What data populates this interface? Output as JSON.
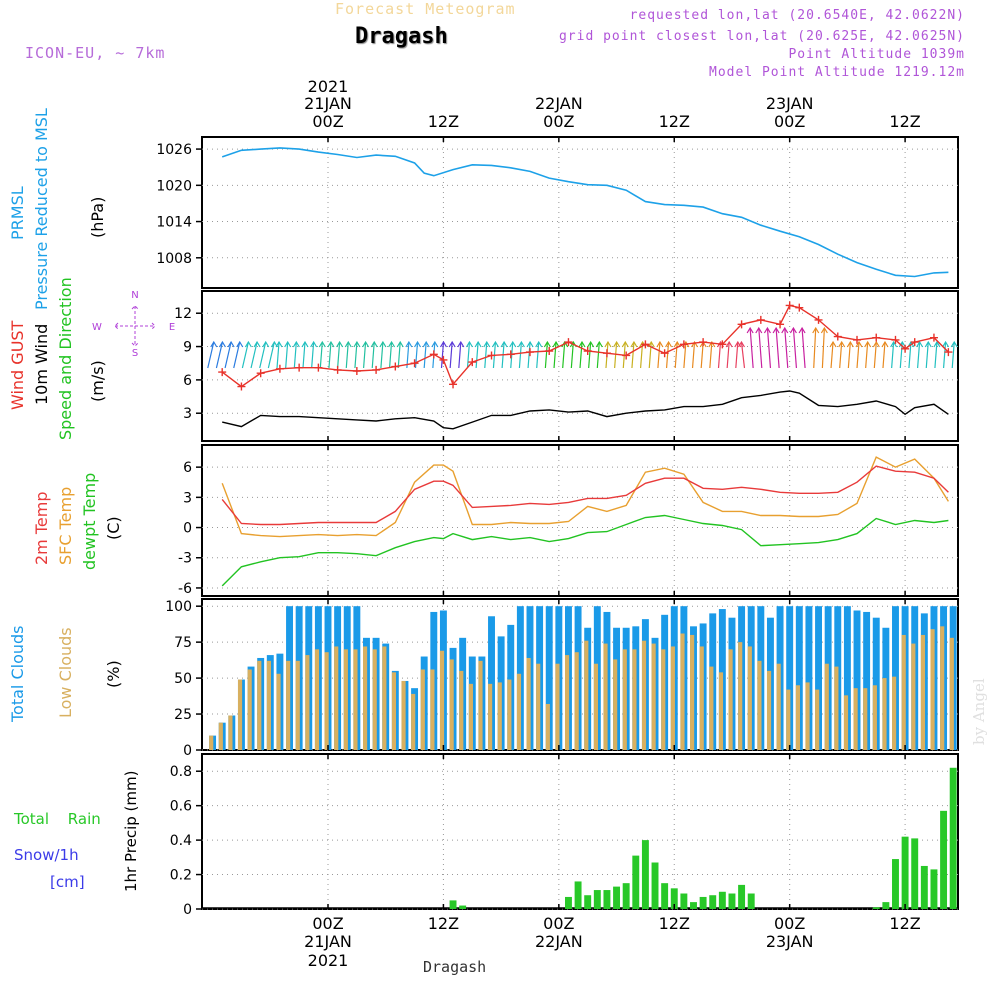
{
  "header": {
    "subtitle": "Forecast Meteogram",
    "title": "Dragash",
    "model": "ICON-EU, ~ 7km",
    "requested": "requested lon,lat (20.6540E, 42.0622N)",
    "grid_point": "grid point closest lon,lat (20.625E, 42.0625N)",
    "point_altitude": "Point Altitude 1039m",
    "model_altitude": "Model Point Altitude 1219.12m",
    "footer": "Dragash",
    "credit": "by Angel"
  },
  "time_axis": {
    "top_year": "2021",
    "ticks": [
      {
        "hour": 0,
        "label": "00Z",
        "date": "21JAN",
        "year": "2021"
      },
      {
        "hour": 12,
        "label": "12Z",
        "date": "",
        "year": ""
      },
      {
        "hour": 24,
        "label": "00Z",
        "date": "22JAN",
        "year": ""
      },
      {
        "hour": 36,
        "label": "12Z",
        "date": "",
        "year": ""
      },
      {
        "hour": 48,
        "label": "00Z",
        "date": "23JAN",
        "year": ""
      },
      {
        "hour": 60,
        "label": "12Z",
        "date": "",
        "year": ""
      }
    ]
  },
  "panel_labels": {
    "pressure": [
      "PRMSL",
      "Pressure Reduced to MSL",
      "(hPa)"
    ],
    "wind": [
      "Wind GUST",
      "10m Wind",
      "Speed and Direction",
      "(m/s)"
    ],
    "compass": {
      "n": "N",
      "s": "S",
      "w": "W",
      "e": "E"
    },
    "temp": [
      "2m Temp",
      "SFC Temp",
      "dewpt Temp",
      "(C)"
    ],
    "clouds": [
      "Total Clouds",
      "Low Clouds",
      "(%)"
    ],
    "precip": [
      "Total Rain",
      "Snow/1h",
      "[cm]",
      "1hr Precip (mm)"
    ]
  },
  "colors": {
    "pressure": "#1da1e8",
    "gust": "#e8322a",
    "wind": "#000000",
    "temp2m": "#e83a3a",
    "sfc": "#e8a030",
    "dewpt": "#22c322",
    "total_clouds": "#1a9ae8",
    "low_clouds": "#d8b060",
    "rain": "#28c828",
    "snow": "#3b3be8",
    "compass": "#b040d8"
  },
  "chart_data": [
    {
      "type": "line",
      "name": "pressure",
      "ylabel": "(hPa)",
      "ylim": [
        1003,
        1028
      ],
      "yticks": [
        1008,
        1014,
        1020,
        1026
      ],
      "x": [
        -11,
        -9,
        -7,
        -5,
        -3,
        -1,
        1,
        3,
        5,
        7,
        9,
        10,
        11,
        13,
        15,
        17,
        19,
        21,
        23,
        25,
        27,
        29,
        31,
        33,
        35,
        37,
        39,
        41,
        43,
        45,
        47,
        49,
        51,
        53,
        55,
        57,
        59,
        61,
        63,
        64.5
      ],
      "series": [
        {
          "name": "PRMSL",
          "values": [
            1024.7,
            1025.8,
            1026.0,
            1026.2,
            1026.0,
            1025.5,
            1025.1,
            1024.6,
            1025.0,
            1024.8,
            1023.7,
            1022.0,
            1021.6,
            1022.6,
            1023.4,
            1023.3,
            1022.9,
            1022.3,
            1021.2,
            1020.6,
            1020.1,
            1020.0,
            1019.2,
            1017.3,
            1016.8,
            1016.7,
            1016.4,
            1015.3,
            1014.7,
            1013.4,
            1012.4,
            1011.5,
            1010.2,
            1008.6,
            1007.2,
            1006.1,
            1005.1,
            1004.9,
            1005.5,
            1005.6
          ]
        }
      ]
    },
    {
      "type": "line",
      "name": "wind",
      "ylabel": "(m/s)",
      "ylim": [
        0.5,
        14
      ],
      "yticks": [
        3,
        6,
        9,
        12
      ],
      "x": [
        -11,
        -9,
        -7,
        -5,
        -3,
        -1,
        1,
        3,
        5,
        7,
        9,
        11,
        12,
        13,
        15,
        17,
        19,
        21,
        23,
        25,
        27,
        29,
        31,
        33,
        35,
        37,
        39,
        41,
        43,
        45,
        47,
        48,
        49,
        51,
        53,
        55,
        57,
        59,
        60,
        61,
        63,
        64.5
      ],
      "series": [
        {
          "name": "Wind GUST",
          "values": [
            6.7,
            5.4,
            6.6,
            7.0,
            7.1,
            7.1,
            6.9,
            6.8,
            6.9,
            7.2,
            7.5,
            8.3,
            7.8,
            5.6,
            7.6,
            8.2,
            8.3,
            8.5,
            8.6,
            9.4,
            8.6,
            8.4,
            8.2,
            9.2,
            8.4,
            9.2,
            9.4,
            9.2,
            11.0,
            11.4,
            11.0,
            12.7,
            12.5,
            11.4,
            9.9,
            9.6,
            9.8,
            9.6,
            8.8,
            9.4,
            9.8,
            8.5
          ]
        },
        {
          "name": "10m Wind",
          "values": [
            2.2,
            1.8,
            2.8,
            2.7,
            2.7,
            2.6,
            2.5,
            2.4,
            2.3,
            2.5,
            2.6,
            2.3,
            1.7,
            1.6,
            2.2,
            2.8,
            2.8,
            3.2,
            3.3,
            3.1,
            3.2,
            2.7,
            3.0,
            3.2,
            3.3,
            3.6,
            3.6,
            3.8,
            4.4,
            4.6,
            4.9,
            5.0,
            4.8,
            3.7,
            3.6,
            3.8,
            4.1,
            3.6,
            2.9,
            3.5,
            3.8,
            2.9
          ]
        }
      ]
    },
    {
      "type": "line",
      "name": "temperature",
      "ylabel": "(C)",
      "ylim": [
        -6.8,
        8.2
      ],
      "yticks": [
        -6,
        -3,
        0,
        3,
        6
      ],
      "x": [
        -11,
        -9,
        -7,
        -5,
        -3,
        -1,
        1,
        3,
        5,
        7,
        9,
        11,
        12,
        13,
        15,
        17,
        19,
        21,
        23,
        25,
        27,
        29,
        31,
        33,
        35,
        37,
        39,
        41,
        43,
        45,
        47,
        49,
        51,
        53,
        55,
        57,
        59,
        61,
        63,
        64.5
      ],
      "series": [
        {
          "name": "2m Temp",
          "values": [
            2.8,
            0.4,
            0.3,
            0.3,
            0.4,
            0.5,
            0.5,
            0.5,
            0.5,
            1.6,
            3.8,
            4.6,
            4.6,
            4.2,
            2.0,
            2.1,
            2.2,
            2.4,
            2.3,
            2.5,
            2.9,
            2.9,
            3.2,
            4.4,
            4.9,
            4.9,
            3.9,
            3.8,
            4.0,
            3.8,
            3.5,
            3.4,
            3.4,
            3.5,
            4.5,
            6.1,
            5.6,
            5.5,
            4.9,
            3.5
          ]
        },
        {
          "name": "SFC Temp",
          "values": [
            4.4,
            -0.6,
            -0.8,
            -0.9,
            -0.8,
            -0.7,
            -0.8,
            -0.7,
            -0.8,
            0.5,
            4.5,
            6.2,
            6.2,
            5.6,
            0.3,
            0.3,
            0.5,
            0.4,
            0.4,
            0.6,
            2.1,
            1.6,
            2.2,
            5.5,
            5.9,
            5.3,
            2.5,
            1.6,
            1.6,
            1.2,
            1.2,
            1.1,
            1.1,
            1.3,
            2.4,
            7.0,
            6.0,
            6.8,
            4.9,
            2.6
          ]
        },
        {
          "name": "dewpt Temp",
          "values": [
            -5.8,
            -3.9,
            -3.4,
            -3.0,
            -2.9,
            -2.5,
            -2.5,
            -2.6,
            -2.8,
            -2.0,
            -1.4,
            -1.0,
            -1.1,
            -0.6,
            -1.2,
            -0.9,
            -1.2,
            -1.0,
            -1.4,
            -1.1,
            -0.5,
            -0.4,
            0.3,
            1.0,
            1.2,
            0.8,
            0.4,
            0.2,
            -0.2,
            -1.8,
            -1.7,
            -1.6,
            -1.5,
            -1.2,
            -0.6,
            0.9,
            0.3,
            0.7,
            0.5,
            0.7
          ]
        }
      ]
    },
    {
      "type": "bar",
      "name": "clouds",
      "ylabel": "(%)",
      "ylim": [
        0,
        105
      ],
      "yticks": [
        0,
        25,
        50,
        75,
        100
      ],
      "x": [
        -12,
        -11,
        -10,
        -9,
        -8,
        -7,
        -6,
        -5,
        -4,
        -3,
        -2,
        -1,
        0,
        1,
        2,
        3,
        4,
        5,
        6,
        7,
        8,
        9,
        10,
        11,
        12,
        13,
        14,
        15,
        16,
        17,
        18,
        19,
        20,
        21,
        22,
        23,
        24,
        25,
        26,
        27,
        28,
        29,
        30,
        31,
        32,
        33,
        34,
        35,
        36,
        37,
        38,
        39,
        40,
        41,
        42,
        43,
        44,
        45,
        46,
        47,
        48,
        49,
        50,
        51,
        52,
        53,
        54,
        55,
        56,
        57,
        58,
        59,
        60,
        61,
        62,
        63,
        64,
        65
      ],
      "series": [
        {
          "name": "Total Clouds",
          "values": [
            10,
            19,
            24,
            49,
            58,
            64,
            66,
            67,
            100,
            100,
            100,
            100,
            100,
            100,
            100,
            100,
            78,
            78,
            74,
            55,
            48,
            43,
            65,
            96,
            97,
            71,
            78,
            65,
            65,
            93,
            79,
            87,
            100,
            100,
            100,
            100,
            100,
            100,
            100,
            85,
            100,
            96,
            85,
            85,
            86,
            91,
            78,
            94,
            100,
            100,
            86,
            88,
            95,
            98,
            92,
            100,
            100,
            100,
            92,
            100,
            100,
            100,
            100,
            100,
            100,
            100,
            100,
            97,
            96,
            92,
            85,
            100,
            100,
            100,
            95,
            100,
            100,
            100
          ]
        },
        {
          "name": "Low Clouds",
          "values": [
            10,
            19,
            24,
            49,
            56,
            62,
            62,
            53,
            62,
            62,
            66,
            70,
            68,
            72,
            70,
            70,
            72,
            70,
            72,
            54,
            48,
            39,
            56,
            56,
            69,
            63,
            55,
            46,
            62,
            46,
            47,
            49,
            53,
            64,
            60,
            32,
            60,
            66,
            68,
            76,
            60,
            74,
            63,
            70,
            70,
            76,
            74,
            70,
            72,
            81,
            80,
            72,
            58,
            54,
            70,
            75,
            72,
            62,
            55,
            60,
            42,
            45,
            47,
            42,
            60,
            58,
            38,
            43,
            43,
            45,
            50,
            51,
            80,
            74,
            80,
            84,
            86,
            78
          ]
        }
      ]
    },
    {
      "type": "bar",
      "name": "precip",
      "ylabel": "1hr Precip (mm)",
      "ylim": [
        0,
        0.9
      ],
      "yticks": [
        0,
        0.2,
        0.4,
        0.6,
        0.8
      ],
      "x": [
        13,
        14,
        25,
        26,
        27,
        28,
        29,
        30,
        31,
        32,
        33,
        34,
        35,
        36,
        37,
        38,
        39,
        40,
        41,
        42,
        43,
        44,
        45,
        57,
        58,
        59,
        60,
        61,
        62,
        63,
        64,
        65
      ],
      "series": [
        {
          "name": "Total Rain",
          "values": [
            0.05,
            0.02,
            0.07,
            0.16,
            0.08,
            0.11,
            0.11,
            0.13,
            0.15,
            0.31,
            0.4,
            0.27,
            0.15,
            0.12,
            0.09,
            0.04,
            0.07,
            0.08,
            0.1,
            0.09,
            0.14,
            0.09,
            0.0,
            0.01,
            0.04,
            0.29,
            0.42,
            0.41,
            0.25,
            0.23,
            0.57,
            0.82
          ]
        }
      ]
    }
  ]
}
